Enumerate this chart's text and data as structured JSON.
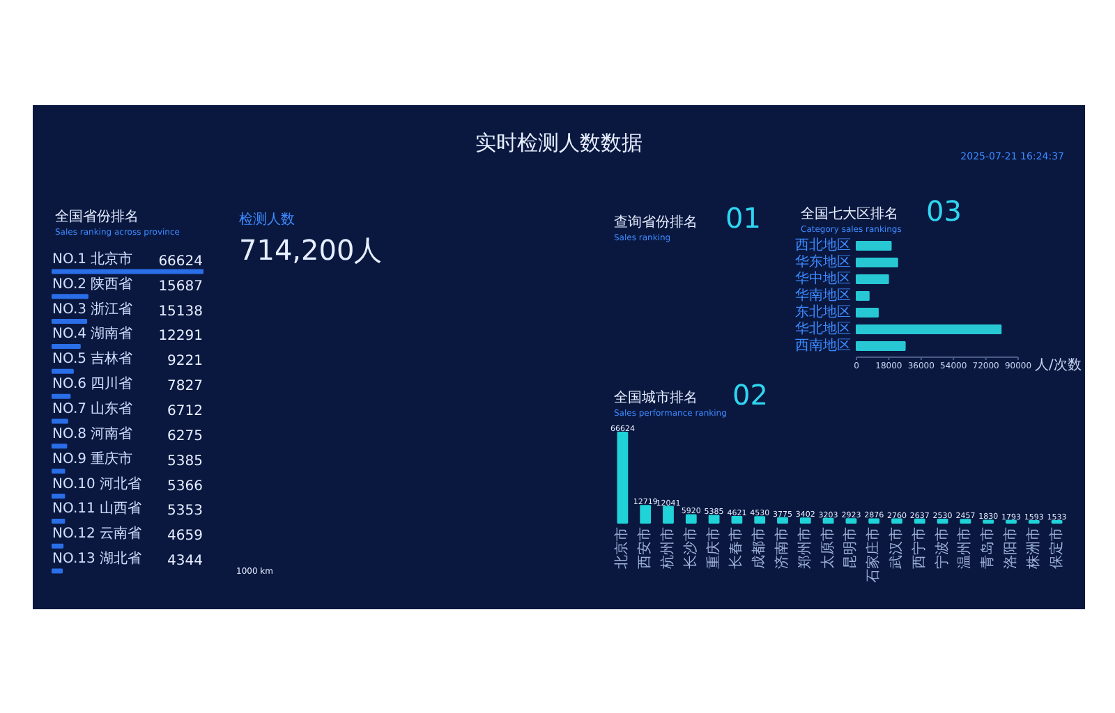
{
  "chart_data": [
    {
      "type": "other",
      "title": "实时检测人数数据",
      "annotations": [
        "2025-07-21 16:24:37"
      ]
    },
    {
      "type": "bar",
      "orientation": "horizontal",
      "title": "全国省份排名",
      "subtitle": "Sales ranking across province",
      "categories": [
        "NO.1 北京市",
        "NO.2 陕西省",
        "NO.3 浙江省",
        "NO.4 湖南省",
        "NO.5 吉林省",
        "NO.6 四川省",
        "NO.7 山东省",
        "NO.8 河南省",
        "NO.9 重庆市",
        "NO.10 河北省",
        "NO.11 山西省",
        "NO.12 云南省",
        "NO.13 湖北省"
      ],
      "values": [
        66624,
        15687,
        15138,
        12291,
        9221,
        7827,
        6712,
        6275,
        5385,
        5366,
        5353,
        4659,
        4344
      ],
      "color": "#2a6ee8",
      "data_labels": true
    },
    {
      "type": "other",
      "title": "检测人数",
      "annotations": [
        "714,200人",
        "1000 km"
      ]
    },
    {
      "type": "other",
      "title": "查询省份排名",
      "subtitle": "Sales ranking",
      "annotations": [
        "01"
      ]
    },
    {
      "type": "bar",
      "orientation": "horizontal",
      "title": "全国七大区排名",
      "subtitle": "Category sales rankings",
      "annotations": [
        "03"
      ],
      "categories": [
        "西北地区",
        "华东地区",
        "华中地区",
        "华南地区",
        "东北地区",
        "华北地区",
        "西南地区"
      ],
      "values": [
        19200,
        22800,
        17700,
        6900,
        12000,
        80400,
        27000
      ],
      "color": "#27c8d4",
      "xlim": [
        0,
        90000
      ],
      "xticks": [
        0,
        18000,
        36000,
        54000,
        72000,
        90000
      ],
      "xlabel": "人/次数"
    },
    {
      "type": "bar",
      "title": "全国城市排名",
      "subtitle": "Sales performance ranking",
      "annotations": [
        "02"
      ],
      "categories": [
        "北京市",
        "西安市",
        "杭州市",
        "长沙市",
        "重庆市",
        "长春市",
        "成都市",
        "济南市",
        "郑州市",
        "太原市",
        "昆明市",
        "石家庄市",
        "武汉市",
        "西宁市",
        "宁波市",
        "温州市",
        "青岛市",
        "洛阳市",
        "株洲市",
        "保定市"
      ],
      "values": [
        66624,
        12719,
        12041,
        5920,
        5385,
        4621,
        4530,
        3775,
        3402,
        3203,
        2923,
        2876,
        2760,
        2637,
        2530,
        2457,
        1830,
        1793,
        1593,
        1533
      ],
      "color": "#1fd3d8",
      "data_labels": true
    }
  ]
}
